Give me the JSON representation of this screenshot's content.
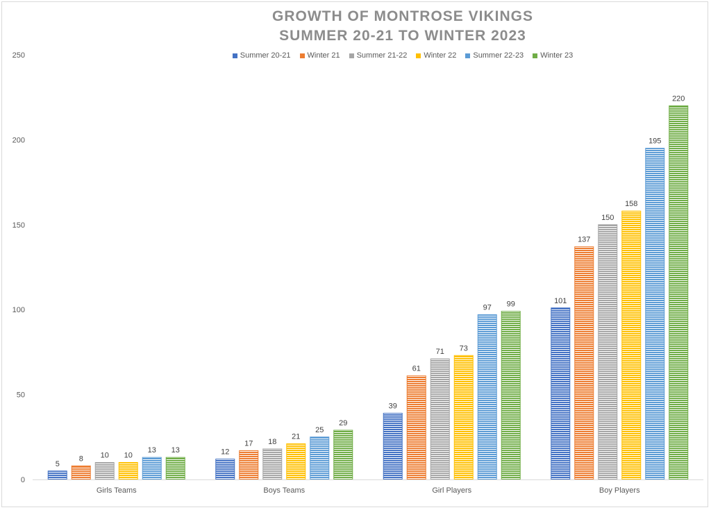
{
  "title_line1": "GROWTH OF MONTROSE VIKINGS",
  "title_line2": "SUMMER 20-21 TO WINTER 2023",
  "chart_data": {
    "type": "bar",
    "title": "GROWTH OF MONTROSE VIKINGS SUMMER 20-21 TO WINTER 2023",
    "categories": [
      "Girls Teams",
      "Boys Teams",
      "Girl Players",
      "Boy Players"
    ],
    "series": [
      {
        "name": "Summer 20-21",
        "color": "#4472c4",
        "values": [
          5,
          12,
          39,
          101
        ]
      },
      {
        "name": "Winter 21",
        "color": "#ed7d31",
        "values": [
          8,
          17,
          61,
          137
        ]
      },
      {
        "name": "Summer 21-22",
        "color": "#a5a5a5",
        "values": [
          10,
          18,
          71,
          150
        ]
      },
      {
        "name": "Winter 22",
        "color": "#ffc000",
        "values": [
          10,
          21,
          73,
          158
        ]
      },
      {
        "name": "Summer 22-23",
        "color": "#5b9bd5",
        "values": [
          13,
          25,
          97,
          195
        ]
      },
      {
        "name": "Winter 23",
        "color": "#70ad47",
        "values": [
          13,
          29,
          99,
          220
        ]
      }
    ],
    "yticks": [
      "0",
      "50",
      "100",
      "150",
      "200",
      "250"
    ],
    "ylim": [
      0,
      250
    ],
    "grid": false,
    "legend_position": "top"
  }
}
